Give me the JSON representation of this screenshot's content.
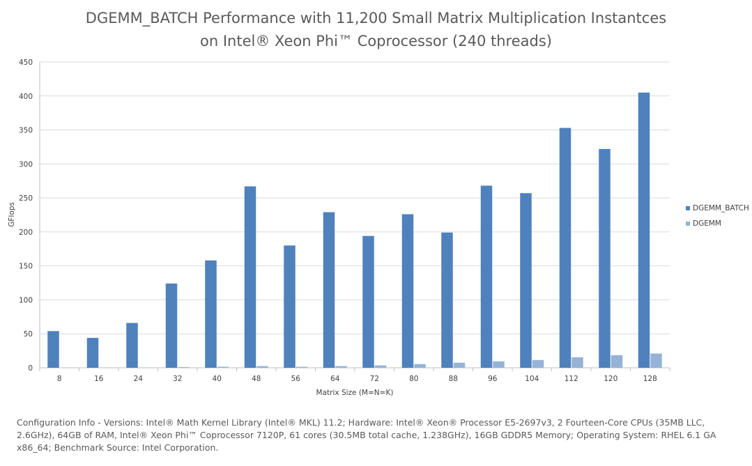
{
  "chart_data": {
    "type": "bar",
    "title": "DGEMM_BATCH Performance with 11,200 Small Matrix Multiplication Instantces",
    "subtitle": "on Intel® Xeon Phi™ Coprocessor (240 threads)",
    "xlabel": "Matrix Size (M=N=K)",
    "ylabel": "GFlops",
    "ylim": [
      0,
      450
    ],
    "yticks": [
      "0",
      "50",
      "100",
      "150",
      "200",
      "250",
      "300",
      "350",
      "400",
      "450"
    ],
    "categories": [
      "8",
      "16",
      "24",
      "32",
      "40",
      "48",
      "56",
      "64",
      "72",
      "80",
      "88",
      "96",
      "104",
      "112",
      "120",
      "128"
    ],
    "series": [
      {
        "name": "DGEMM_BATCH",
        "color": "#4f81bd",
        "values": [
          54,
          44,
          66,
          124,
          158,
          267,
          180,
          229,
          194,
          226,
          199,
          268,
          257,
          353,
          322,
          405
        ]
      },
      {
        "name": "DGEMM",
        "color": "#95b3d7",
        "values": [
          0.2,
          0.3,
          0.5,
          1,
          1.5,
          2.5,
          1.5,
          2.5,
          3.5,
          5.5,
          7.5,
          9.5,
          11.5,
          15.5,
          18.5,
          21
        ]
      }
    ],
    "legend_position": "right",
    "grid": true
  },
  "footnote": "Configuration Info - Versions: Intel® Math Kernel Library (Intel® MKL) 11.2; Hardware: Intel® Xeon® Processor E5-2697v3, 2 Fourteen-Core CPUs (35MB LLC, 2.6GHz), 64GB of RAM, Intel® Xeon Phi™ Coprocessor 7120P, 61 cores (30.5MB total cache, 1.238GHz), 16GB GDDR5 Memory; Operating System: RHEL 6.1 GA x86_64;  Benchmark Source: Intel Corporation."
}
